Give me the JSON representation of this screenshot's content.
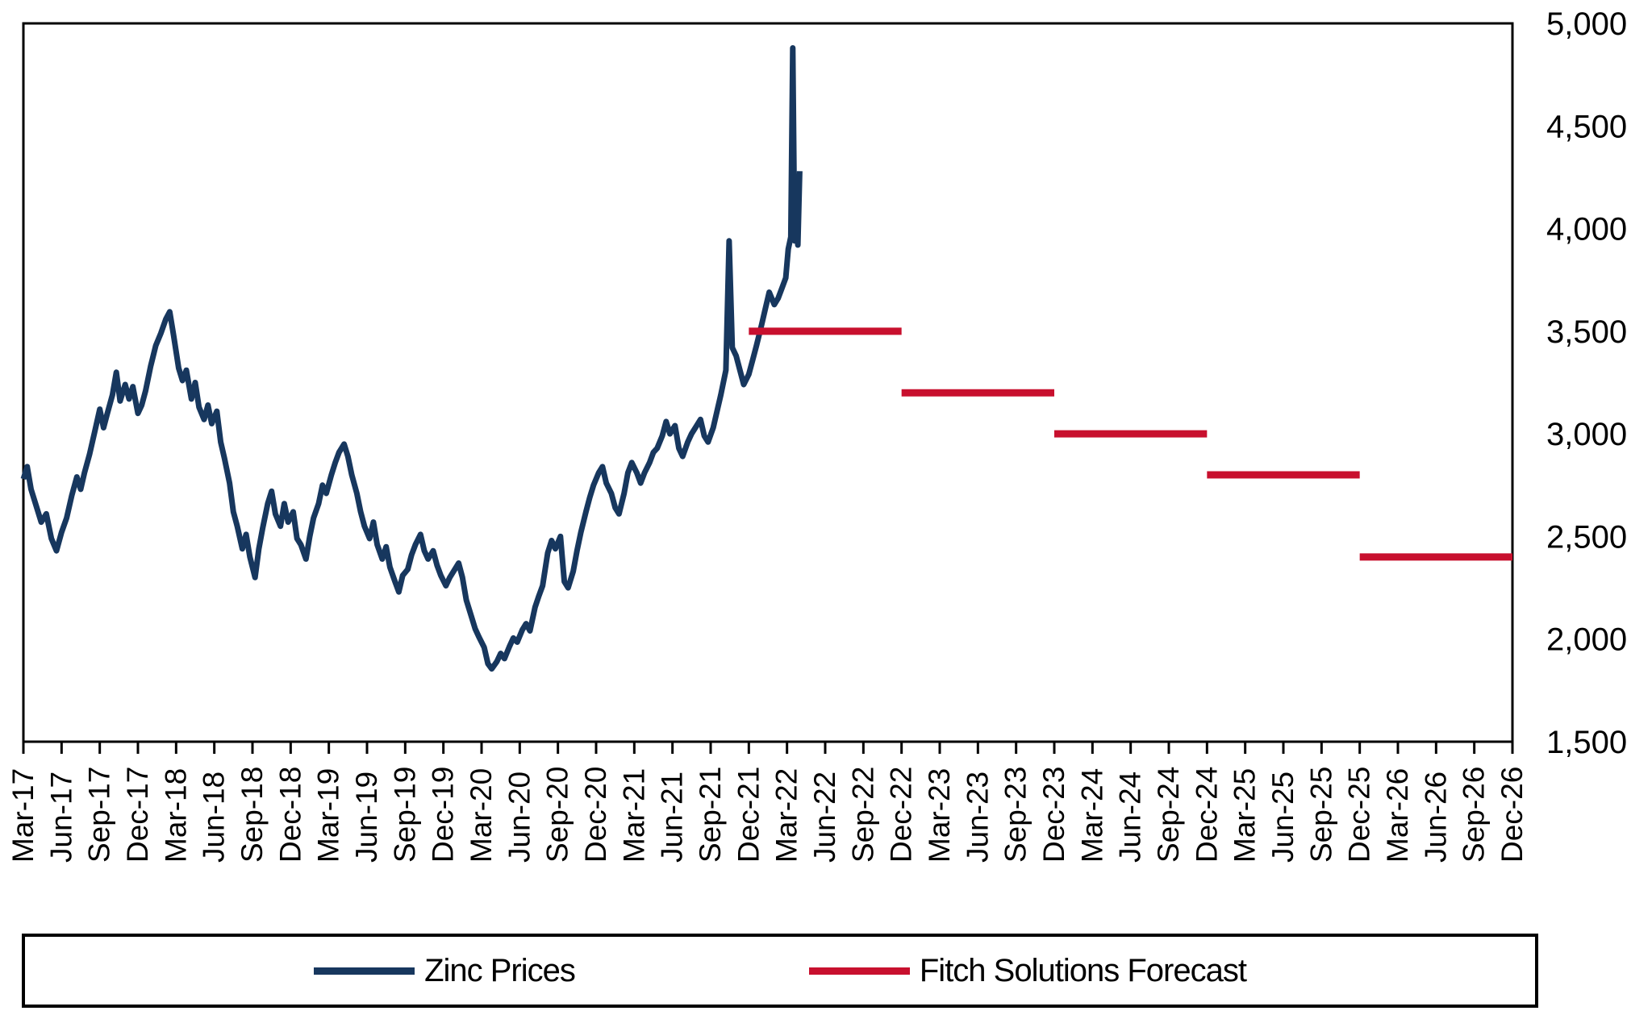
{
  "chart_data": {
    "type": "line",
    "title": "",
    "xlabel": "",
    "ylabel": "",
    "grid": false,
    "legend_position": "bottom",
    "y_axis": {
      "min": 1500,
      "max": 5000,
      "step": 500,
      "side": "right",
      "tick_labels": [
        "5,000",
        "4,500",
        "4,000",
        "3,500",
        "3,000",
        "2,500",
        "2,000",
        "1,500"
      ]
    },
    "x_axis": {
      "tick_labels": [
        "Mar-17",
        "Jun-17",
        "Sep-17",
        "Dec-17",
        "Mar-18",
        "Jun-18",
        "Sep-18",
        "Dec-18",
        "Mar-19",
        "Jun-19",
        "Sep-19",
        "Dec-19",
        "Mar-20",
        "Jun-20",
        "Sep-20",
        "Dec-20",
        "Mar-21",
        "Jun-21",
        "Sep-21",
        "Dec-21",
        "Mar-22",
        "Jun-22",
        "Sep-22",
        "Dec-22",
        "Mar-23",
        "Jun-23",
        "Sep-23",
        "Dec-23",
        "Mar-24",
        "Jun-24",
        "Sep-24",
        "Dec-24",
        "Mar-25",
        "Jun-25",
        "Sep-25",
        "Dec-25",
        "Mar-26",
        "Jun-26",
        "Sep-26",
        "Dec-26"
      ],
      "label_rotation_deg": -90
    },
    "series": [
      {
        "name": "Zinc Prices",
        "color": "#17375E",
        "type": "line",
        "x_unit": "months_after_Mar-17",
        "points": [
          [
            0,
            2780
          ],
          [
            0.3,
            2840
          ],
          [
            0.6,
            2730
          ],
          [
            1,
            2650
          ],
          [
            1.4,
            2570
          ],
          [
            1.8,
            2610
          ],
          [
            2.2,
            2490
          ],
          [
            2.6,
            2430
          ],
          [
            3,
            2520
          ],
          [
            3.4,
            2590
          ],
          [
            3.8,
            2700
          ],
          [
            4.2,
            2790
          ],
          [
            4.5,
            2730
          ],
          [
            4.8,
            2810
          ],
          [
            5.2,
            2900
          ],
          [
            5.6,
            3010
          ],
          [
            6,
            3120
          ],
          [
            6.3,
            3030
          ],
          [
            6.6,
            3100
          ],
          [
            7,
            3190
          ],
          [
            7.3,
            3300
          ],
          [
            7.6,
            3160
          ],
          [
            8,
            3240
          ],
          [
            8.3,
            3170
          ],
          [
            8.6,
            3230
          ],
          [
            9,
            3100
          ],
          [
            9.3,
            3140
          ],
          [
            9.6,
            3210
          ],
          [
            10,
            3330
          ],
          [
            10.4,
            3430
          ],
          [
            10.8,
            3490
          ],
          [
            11.2,
            3560
          ],
          [
            11.5,
            3595
          ],
          [
            11.8,
            3480
          ],
          [
            12.2,
            3320
          ],
          [
            12.5,
            3260
          ],
          [
            12.8,
            3310
          ],
          [
            13.2,
            3170
          ],
          [
            13.5,
            3250
          ],
          [
            13.8,
            3130
          ],
          [
            14.2,
            3070
          ],
          [
            14.5,
            3140
          ],
          [
            14.8,
            3050
          ],
          [
            15.2,
            3110
          ],
          [
            15.5,
            2960
          ],
          [
            15.8,
            2880
          ],
          [
            16.2,
            2760
          ],
          [
            16.5,
            2620
          ],
          [
            16.8,
            2550
          ],
          [
            17.2,
            2440
          ],
          [
            17.5,
            2510
          ],
          [
            17.8,
            2400
          ],
          [
            18.2,
            2300
          ],
          [
            18.5,
            2440
          ],
          [
            18.8,
            2540
          ],
          [
            19.2,
            2660
          ],
          [
            19.5,
            2720
          ],
          [
            19.8,
            2610
          ],
          [
            20.2,
            2550
          ],
          [
            20.5,
            2660
          ],
          [
            20.8,
            2570
          ],
          [
            21.2,
            2620
          ],
          [
            21.5,
            2490
          ],
          [
            21.8,
            2460
          ],
          [
            22.2,
            2390
          ],
          [
            22.5,
            2500
          ],
          [
            22.8,
            2590
          ],
          [
            23.2,
            2660
          ],
          [
            23.5,
            2750
          ],
          [
            23.8,
            2710
          ],
          [
            24.2,
            2800
          ],
          [
            24.5,
            2860
          ],
          [
            24.8,
            2910
          ],
          [
            25.2,
            2950
          ],
          [
            25.5,
            2890
          ],
          [
            25.8,
            2800
          ],
          [
            26.2,
            2710
          ],
          [
            26.5,
            2620
          ],
          [
            26.8,
            2550
          ],
          [
            27.2,
            2490
          ],
          [
            27.5,
            2570
          ],
          [
            27.8,
            2460
          ],
          [
            28.2,
            2390
          ],
          [
            28.5,
            2450
          ],
          [
            28.8,
            2350
          ],
          [
            29.2,
            2280
          ],
          [
            29.5,
            2230
          ],
          [
            29.8,
            2310
          ],
          [
            30.2,
            2340
          ],
          [
            30.5,
            2410
          ],
          [
            30.8,
            2460
          ],
          [
            31.2,
            2510
          ],
          [
            31.5,
            2430
          ],
          [
            31.8,
            2390
          ],
          [
            32.2,
            2430
          ],
          [
            32.5,
            2360
          ],
          [
            32.8,
            2310
          ],
          [
            33.2,
            2260
          ],
          [
            33.5,
            2300
          ],
          [
            33.8,
            2330
          ],
          [
            34.2,
            2370
          ],
          [
            34.5,
            2300
          ],
          [
            34.8,
            2190
          ],
          [
            35.2,
            2110
          ],
          [
            35.5,
            2050
          ],
          [
            35.8,
            2010
          ],
          [
            36.2,
            1960
          ],
          [
            36.5,
            1880
          ],
          [
            36.8,
            1855
          ],
          [
            37.2,
            1890
          ],
          [
            37.5,
            1930
          ],
          [
            37.8,
            1905
          ],
          [
            38.2,
            1965
          ],
          [
            38.5,
            2005
          ],
          [
            38.8,
            1985
          ],
          [
            39.2,
            2045
          ],
          [
            39.5,
            2075
          ],
          [
            39.8,
            2040
          ],
          [
            40.2,
            2155
          ],
          [
            40.5,
            2210
          ],
          [
            40.8,
            2260
          ],
          [
            41.2,
            2420
          ],
          [
            41.5,
            2480
          ],
          [
            41.8,
            2440
          ],
          [
            42.2,
            2500
          ],
          [
            42.5,
            2280
          ],
          [
            42.8,
            2250
          ],
          [
            43.2,
            2330
          ],
          [
            43.5,
            2430
          ],
          [
            43.8,
            2520
          ],
          [
            44.2,
            2620
          ],
          [
            44.5,
            2690
          ],
          [
            44.8,
            2750
          ],
          [
            45.2,
            2810
          ],
          [
            45.5,
            2840
          ],
          [
            45.8,
            2760
          ],
          [
            46.2,
            2710
          ],
          [
            46.5,
            2640
          ],
          [
            46.8,
            2610
          ],
          [
            47.2,
            2710
          ],
          [
            47.5,
            2810
          ],
          [
            47.8,
            2860
          ],
          [
            48.2,
            2810
          ],
          [
            48.5,
            2760
          ],
          [
            48.8,
            2810
          ],
          [
            49.2,
            2860
          ],
          [
            49.5,
            2910
          ],
          [
            49.8,
            2930
          ],
          [
            50.2,
            2990
          ],
          [
            50.5,
            3060
          ],
          [
            50.8,
            3000
          ],
          [
            51.2,
            3040
          ],
          [
            51.5,
            2930
          ],
          [
            51.8,
            2890
          ],
          [
            52.2,
            2960
          ],
          [
            52.5,
            3000
          ],
          [
            52.8,
            3030
          ],
          [
            53.2,
            3070
          ],
          [
            53.5,
            2990
          ],
          [
            53.8,
            2960
          ],
          [
            54.2,
            3030
          ],
          [
            54.5,
            3110
          ],
          [
            54.8,
            3190
          ],
          [
            55.2,
            3310
          ],
          [
            55.45,
            3940
          ],
          [
            55.7,
            3420
          ],
          [
            56,
            3380
          ],
          [
            56.3,
            3310
          ],
          [
            56.6,
            3240
          ],
          [
            57,
            3290
          ],
          [
            57.3,
            3360
          ],
          [
            57.6,
            3430
          ],
          [
            58,
            3530
          ],
          [
            58.3,
            3610
          ],
          [
            58.6,
            3690
          ],
          [
            59,
            3630
          ],
          [
            59.3,
            3660
          ],
          [
            59.6,
            3710
          ],
          [
            59.9,
            3760
          ],
          [
            60.1,
            3900
          ],
          [
            60.3,
            3960
          ],
          [
            60.45,
            4880
          ],
          [
            60.6,
            3940
          ],
          [
            60.75,
            4060
          ],
          [
            60.85,
            3920
          ],
          [
            61,
            4280
          ]
        ]
      },
      {
        "name": "Fitch Solutions Forecast",
        "color": "#C8102E",
        "type": "step-segments",
        "segments": [
          {
            "from": "Dec-21",
            "to": "Dec-22",
            "value": 3500
          },
          {
            "from": "Dec-22",
            "to": "Dec-23",
            "value": 3200
          },
          {
            "from": "Dec-23",
            "to": "Dec-24",
            "value": 3000
          },
          {
            "from": "Dec-24",
            "to": "Dec-25",
            "value": 2800
          },
          {
            "from": "Dec-25",
            "to": "Dec-26",
            "value": 2400
          }
        ]
      }
    ],
    "legend": {
      "entries": [
        "Zinc Prices",
        "Fitch Solutions Forecast"
      ]
    }
  },
  "colors": {
    "zinc_line": "#17375E",
    "forecast_line": "#C8102E",
    "axis": "#000000",
    "background": "#FFFFFF"
  }
}
